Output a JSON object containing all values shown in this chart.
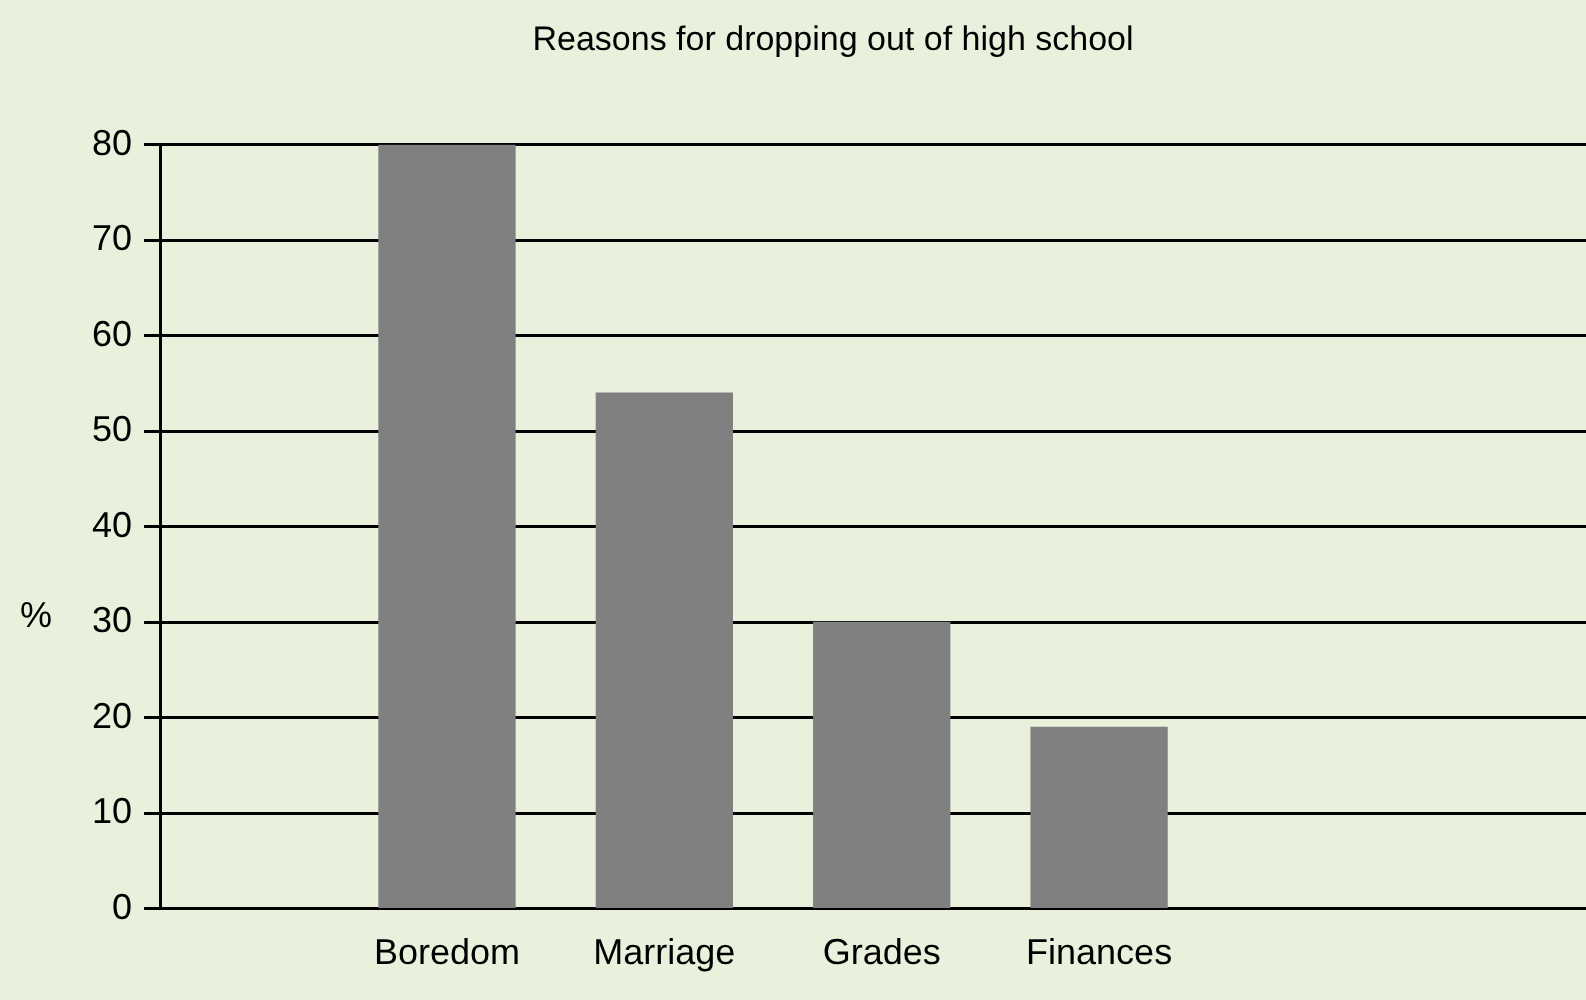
{
  "chart_data": {
    "type": "bar",
    "title": "Reasons for dropping out of high school",
    "ylabel": "%",
    "categories": [
      "Boredom",
      "Marriage",
      "Grades",
      "Finances"
    ],
    "values": [
      80,
      54,
      30,
      19
    ],
    "color": "#808080",
    "ylim": [
      0,
      80
    ],
    "yticks": [
      0,
      10,
      20,
      30,
      40,
      50,
      60,
      70,
      80
    ],
    "grid": "y",
    "legend": false
  }
}
